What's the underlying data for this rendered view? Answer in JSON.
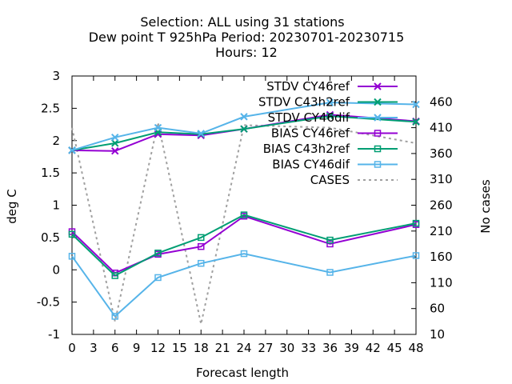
{
  "chart_data": {
    "type": "line",
    "title_lines": [
      "Selection: ALL using    31 stations",
      "Dew point T 925hPa   Period: 20230701-20230715",
      "Hours:  12"
    ],
    "xlabel": "Forecast length",
    "ylabel": "deg C",
    "y2label": "No cases",
    "xlim": [
      0,
      48
    ],
    "ylim": [
      -1,
      3
    ],
    "y2lim": [
      10,
      510
    ],
    "x_ticks": [
      0,
      3,
      6,
      9,
      12,
      15,
      18,
      21,
      24,
      27,
      30,
      33,
      36,
      39,
      42,
      45,
      48
    ],
    "y_ticks": [
      -1,
      -0.5,
      0,
      0.5,
      1,
      1.5,
      2,
      2.5,
      3
    ],
    "y_tick_labels": [
      "-1",
      "-0.5",
      "0",
      "0.5",
      "1",
      "1.5",
      "2",
      "2.5",
      "3"
    ],
    "y2_ticks": [
      10,
      60,
      110,
      160,
      210,
      260,
      310,
      360,
      410,
      460
    ],
    "grid": false,
    "legend_position": "top-right",
    "series": [
      {
        "name": "STDV CY46ref",
        "color": "#9400d3",
        "marker": "x",
        "dash": false,
        "axis": "y1",
        "x": [
          0,
          6,
          12,
          18,
          24,
          36,
          48
        ],
        "y": [
          1.85,
          1.84,
          2.1,
          2.08,
          2.18,
          2.4,
          2.3
        ]
      },
      {
        "name": "STDV C43h2ref",
        "color": "#009e73",
        "marker": "x",
        "dash": false,
        "axis": "y1",
        "x": [
          0,
          6,
          12,
          18,
          24,
          36,
          48
        ],
        "y": [
          1.85,
          1.96,
          2.13,
          2.1,
          2.18,
          2.38,
          2.29
        ]
      },
      {
        "name": "STDV CY46dif",
        "color": "#56b4e9",
        "marker": "x",
        "dash": false,
        "axis": "y1",
        "x": [
          0,
          6,
          12,
          18,
          24,
          36,
          48
        ],
        "y": [
          1.85,
          2.05,
          2.2,
          2.11,
          2.37,
          2.59,
          2.56
        ]
      },
      {
        "name": "BIAS CY46ref",
        "color": "#9400d3",
        "marker": "square",
        "dash": false,
        "axis": "y1",
        "x": [
          0,
          6,
          12,
          18,
          24,
          36,
          48
        ],
        "y": [
          0.59,
          -0.05,
          0.24,
          0.36,
          0.83,
          0.4,
          0.7
        ]
      },
      {
        "name": "BIAS C43h2ref",
        "color": "#009e73",
        "marker": "square",
        "dash": false,
        "axis": "y1",
        "x": [
          0,
          6,
          12,
          18,
          24,
          36,
          48
        ],
        "y": [
          0.55,
          -0.09,
          0.26,
          0.5,
          0.85,
          0.46,
          0.72
        ]
      },
      {
        "name": "BIAS CY46dif",
        "color": "#56b4e9",
        "marker": "square",
        "dash": false,
        "axis": "y1",
        "x": [
          0,
          6,
          12,
          18,
          24,
          36,
          48
        ],
        "y": [
          0.21,
          -0.72,
          -0.12,
          0.1,
          0.25,
          -0.04,
          0.22
        ]
      },
      {
        "name": "CASES",
        "color": "#a0a0a0",
        "marker": "none",
        "dash": true,
        "axis": "y2",
        "x": [
          0,
          6,
          12,
          18,
          24,
          36,
          48
        ],
        "y": [
          410,
          35,
          420,
          30,
          415,
          410,
          380
        ]
      }
    ]
  }
}
